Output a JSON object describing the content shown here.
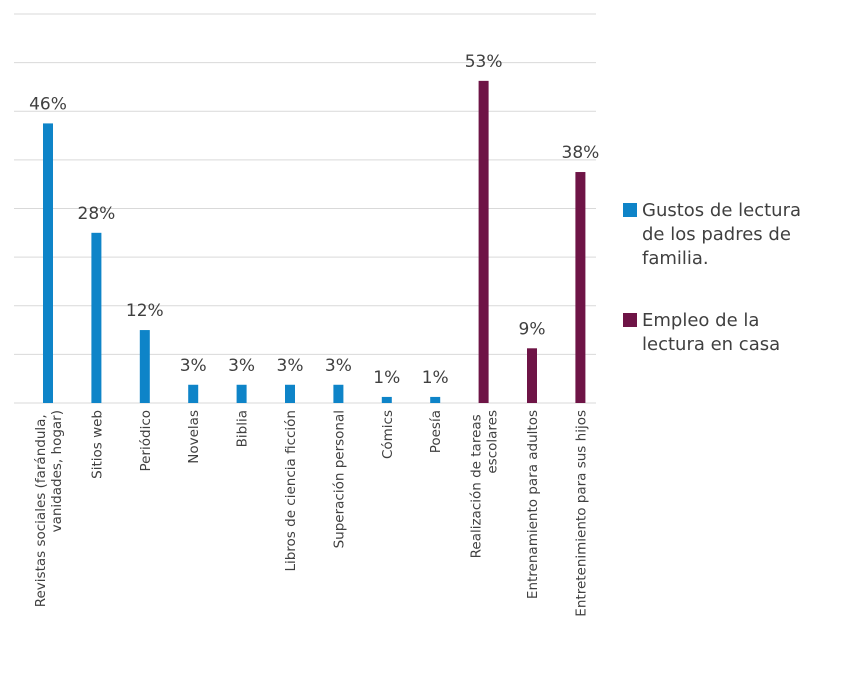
{
  "chart_data": {
    "type": "bar",
    "categories": [
      "Revistas sociales (farándula, vanidades, hogar)",
      "Sitios web",
      "Periódico",
      "Novelas",
      "Biblia",
      "Libros de ciencia ficción",
      "Superación personal",
      "Cómics",
      "Poesía",
      "Realización de tareas escolares",
      "Entrenamiento para adultos",
      "Entretenimiento para sus hijos"
    ],
    "series": [
      {
        "name": "Gustos de lectura de los padres de familia.",
        "color": "#0e84c8",
        "values": [
          46,
          28,
          12,
          3,
          3,
          3,
          3,
          1,
          1,
          null,
          null,
          null
        ],
        "value_labels": [
          "46%",
          "28%",
          "12%",
          "3%",
          "3%",
          "3%",
          "3%",
          "1%",
          "1%",
          null,
          null,
          null
        ]
      },
      {
        "name": "Empleo de la lectura en casa",
        "color": "#6e1446",
        "values": [
          null,
          null,
          null,
          null,
          null,
          null,
          null,
          null,
          null,
          53,
          9,
          38
        ],
        "value_labels": [
          null,
          null,
          null,
          null,
          null,
          null,
          null,
          null,
          null,
          "53%",
          "9%",
          "38%"
        ]
      }
    ],
    "ylim": [
      0,
      64
    ],
    "yticks": [
      0,
      8,
      16,
      24,
      32,
      40,
      48,
      56,
      64
    ],
    "grid": true,
    "legend": "right"
  }
}
